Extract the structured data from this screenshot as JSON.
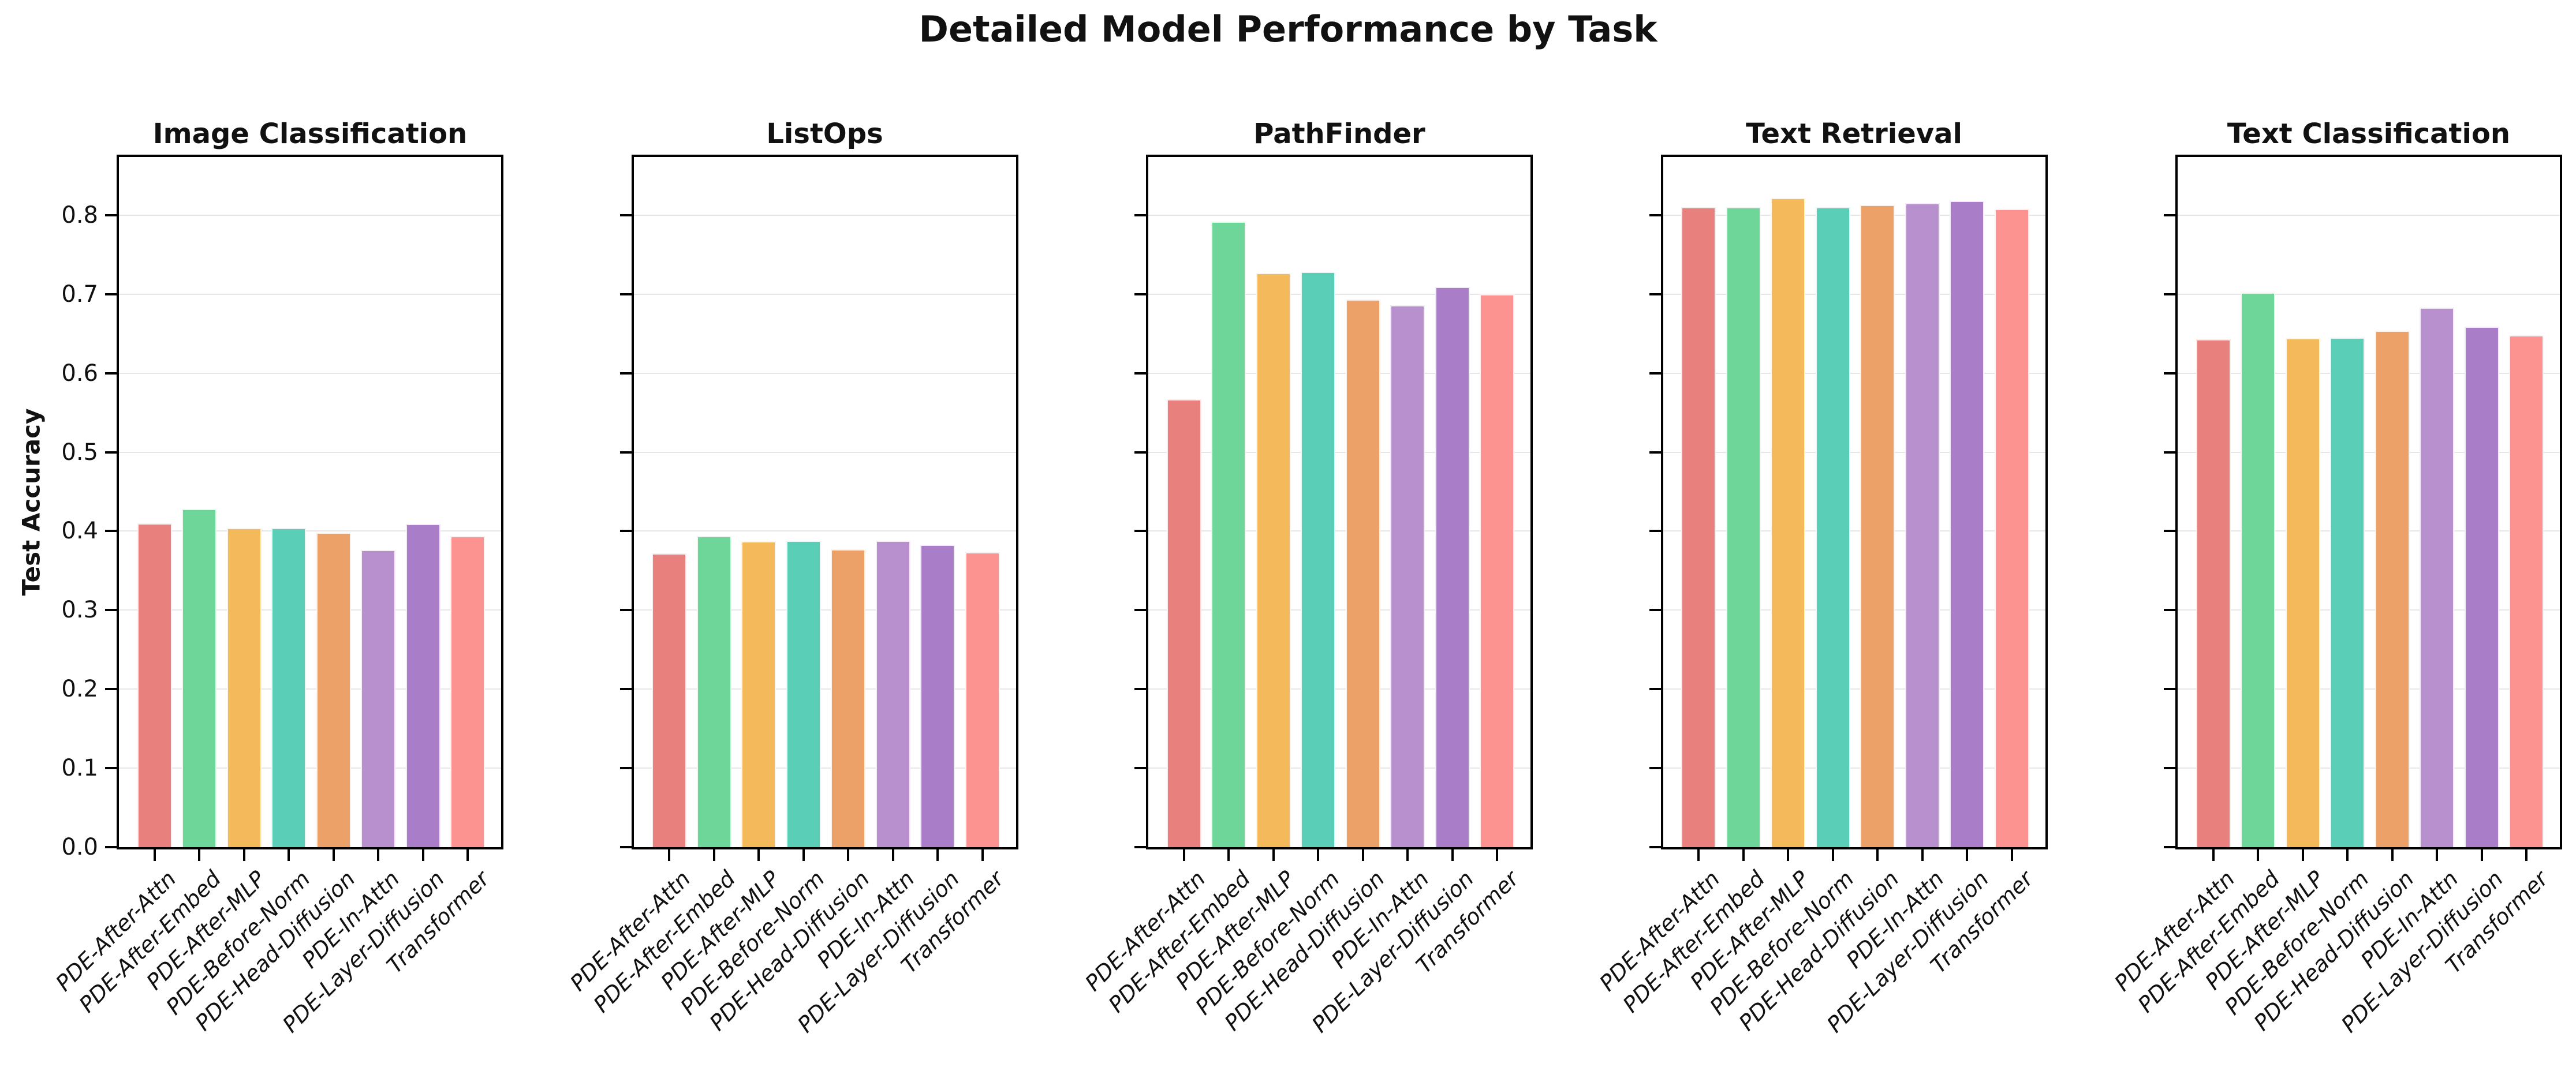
{
  "figure_title": "Detailed Model Performance by Task",
  "ylabel": "Test Accuracy",
  "categories": [
    "PDE-After-Attn",
    "PDE-After-Embed",
    "PDE-After-MLP",
    "PDE-Before-Norm",
    "PDE-Head-Diffusion",
    "PDE-In-Attn",
    "PDE-Layer-Diffusion",
    "Transformer"
  ],
  "palette": [
    "#E8817D",
    "#6FD69A",
    "#F3B95B",
    "#5BCEB7",
    "#ECA168",
    "#B890CE",
    "#AA7DC8",
    "#FD9390"
  ],
  "yticks": [
    "0.0",
    "0.1",
    "0.2",
    "0.3",
    "0.4",
    "0.5",
    "0.6",
    "0.7",
    "0.8"
  ],
  "chart_data": [
    {
      "type": "bar",
      "title": "Image Classification",
      "categories": [
        "PDE-After-Attn",
        "PDE-After-Embed",
        "PDE-After-MLP",
        "PDE-Before-Norm",
        "PDE-Head-Diffusion",
        "PDE-In-Attn",
        "PDE-Layer-Diffusion",
        "Transformer"
      ],
      "values": [
        0.41,
        0.428,
        0.404,
        0.404,
        0.398,
        0.376,
        0.409,
        0.394
      ],
      "xlabel": "",
      "ylabel": "Test Accuracy",
      "ylim": [
        0,
        0.874
      ],
      "grid": "horizontal"
    },
    {
      "type": "bar",
      "title": "ListOps",
      "categories": [
        "PDE-After-Attn",
        "PDE-After-Embed",
        "PDE-After-MLP",
        "PDE-Before-Norm",
        "PDE-Head-Diffusion",
        "PDE-In-Attn",
        "PDE-Layer-Diffusion",
        "Transformer"
      ],
      "values": [
        0.372,
        0.394,
        0.387,
        0.388,
        0.377,
        0.388,
        0.383,
        0.373
      ],
      "xlabel": "",
      "ylabel": "Test Accuracy",
      "ylim": [
        0,
        0.874
      ],
      "grid": "horizontal"
    },
    {
      "type": "bar",
      "title": "PathFinder",
      "categories": [
        "PDE-After-Attn",
        "PDE-After-Embed",
        "PDE-After-MLP",
        "PDE-Before-Norm",
        "PDE-Head-Diffusion",
        "PDE-In-Attn",
        "PDE-Layer-Diffusion",
        "Transformer"
      ],
      "values": [
        0.567,
        0.792,
        0.727,
        0.728,
        0.693,
        0.686,
        0.709,
        0.7
      ],
      "xlabel": "",
      "ylabel": "Test Accuracy",
      "ylim": [
        0,
        0.874
      ],
      "grid": "horizontal"
    },
    {
      "type": "bar",
      "title": "Text Retrieval",
      "categories": [
        "PDE-After-Attn",
        "PDE-After-Embed",
        "PDE-After-MLP",
        "PDE-Before-Norm",
        "PDE-Head-Diffusion",
        "PDE-In-Attn",
        "PDE-Layer-Diffusion",
        "Transformer"
      ],
      "values": [
        0.81,
        0.81,
        0.822,
        0.81,
        0.813,
        0.815,
        0.818,
        0.808
      ],
      "xlabel": "",
      "ylabel": "Test Accuracy",
      "ylim": [
        0,
        0.874
      ],
      "grid": "horizontal"
    },
    {
      "type": "bar",
      "title": "Text Classification",
      "categories": [
        "PDE-After-Attn",
        "PDE-After-Embed",
        "PDE-After-MLP",
        "PDE-Before-Norm",
        "PDE-Head-Diffusion",
        "PDE-In-Attn",
        "PDE-Layer-Diffusion",
        "Transformer"
      ],
      "values": [
        0.643,
        0.702,
        0.644,
        0.645,
        0.654,
        0.683,
        0.659,
        0.648
      ],
      "xlabel": "",
      "ylabel": "Test Accuracy",
      "ylim": [
        0,
        0.874
      ],
      "grid": "horizontal"
    }
  ]
}
